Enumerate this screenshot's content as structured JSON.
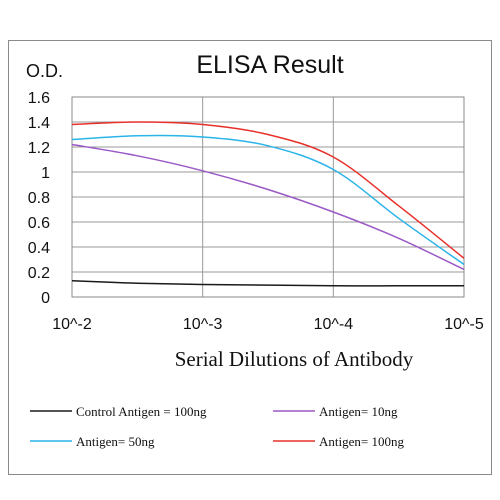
{
  "chart_data": {
    "type": "line",
    "title": "ELISA Result",
    "ylabel": "O.D.",
    "xlabel": "Serial Dilutions  of Antibody",
    "x_tick_labels": [
      "10^-2",
      "10^-3",
      "10^-4",
      "10^-5"
    ],
    "y_tick_labels": [
      "0",
      "0.2",
      "0.4",
      "0.6",
      "0.8",
      "1",
      "1.2",
      "1.4",
      "1.6"
    ],
    "x_log10_range": [
      -2,
      -5
    ],
    "ylim": [
      0,
      1.6
    ],
    "grid": true,
    "legend_position": "bottom",
    "series": [
      {
        "name": "Control Antigen = 100ng",
        "color": "#1a1a1a",
        "points": [
          [
            -2.0,
            0.13
          ],
          [
            -2.5,
            0.11
          ],
          [
            -3.0,
            0.1
          ],
          [
            -3.5,
            0.095
          ],
          [
            -4.0,
            0.09
          ],
          [
            -4.5,
            0.09
          ],
          [
            -5.0,
            0.09
          ]
        ]
      },
      {
        "name": "Antigen= 10ng",
        "color": "#9b59c6",
        "points": [
          [
            -2.0,
            1.22
          ],
          [
            -2.5,
            1.13
          ],
          [
            -3.0,
            1.01
          ],
          [
            -3.5,
            0.86
          ],
          [
            -4.0,
            0.68
          ],
          [
            -4.5,
            0.47
          ],
          [
            -5.0,
            0.22
          ]
        ]
      },
      {
        "name": "Antigen= 50ng",
        "color": "#2ab4e8",
        "points": [
          [
            -2.0,
            1.26
          ],
          [
            -2.5,
            1.29
          ],
          [
            -3.0,
            1.28
          ],
          [
            -3.5,
            1.21
          ],
          [
            -4.0,
            1.02
          ],
          [
            -4.5,
            0.63
          ],
          [
            -5.0,
            0.26
          ]
        ]
      },
      {
        "name": "Antigen= 100ng",
        "color": "#e8302a",
        "points": [
          [
            -2.0,
            1.38
          ],
          [
            -2.5,
            1.4
          ],
          [
            -3.0,
            1.38
          ],
          [
            -3.5,
            1.3
          ],
          [
            -4.0,
            1.12
          ],
          [
            -4.5,
            0.73
          ],
          [
            -5.0,
            0.31
          ]
        ]
      }
    ]
  }
}
